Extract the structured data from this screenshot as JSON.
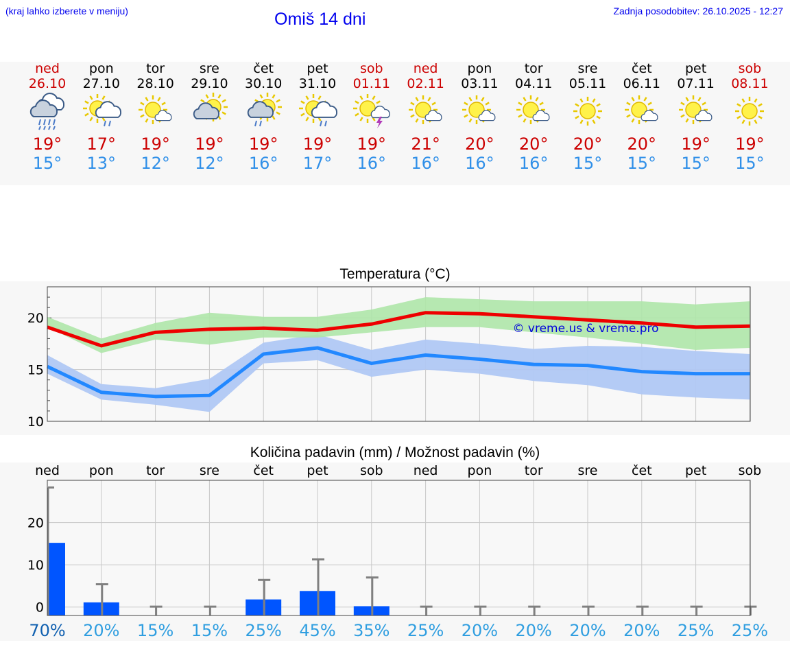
{
  "header": {
    "hint": "(kraj lahko izberete v meniju)",
    "title": "Omiš 14 dni",
    "updated": "Zadnja posodobitev: 26.10.2025 - 12:27"
  },
  "days": [
    {
      "name": "ned",
      "date": "26.10",
      "weekend": true,
      "icon": "cloud-heavy-rain-icon",
      "max": "19°",
      "min": "15°"
    },
    {
      "name": "pon",
      "date": "27.10",
      "weekend": false,
      "icon": "sun-cloud-rain-icon",
      "max": "17°",
      "min": "13°"
    },
    {
      "name": "tor",
      "date": "28.10",
      "weekend": false,
      "icon": "sun-small-cloud-icon",
      "max": "19°",
      "min": "12°"
    },
    {
      "name": "sre",
      "date": "29.10",
      "weekend": false,
      "icon": "cloud-sun-icon",
      "max": "19°",
      "min": "12°"
    },
    {
      "name": "čet",
      "date": "30.10",
      "weekend": false,
      "icon": "cloud-sun-rain-icon",
      "max": "19°",
      "min": "16°"
    },
    {
      "name": "pet",
      "date": "31.10",
      "weekend": false,
      "icon": "sun-cloud-rain-icon",
      "max": "19°",
      "min": "17°"
    },
    {
      "name": "sob",
      "date": "01.11",
      "weekend": true,
      "icon": "sun-cloud-thunder-icon",
      "max": "19°",
      "min": "16°"
    },
    {
      "name": "ned",
      "date": "02.11",
      "weekend": true,
      "icon": "sun-small-cloud-icon",
      "max": "21°",
      "min": "16°"
    },
    {
      "name": "pon",
      "date": "03.11",
      "weekend": false,
      "icon": "sun-small-cloud-icon",
      "max": "20°",
      "min": "16°"
    },
    {
      "name": "tor",
      "date": "04.11",
      "weekend": false,
      "icon": "sun-small-cloud-icon",
      "max": "20°",
      "min": "16°"
    },
    {
      "name": "sre",
      "date": "05.11",
      "weekend": false,
      "icon": "sun-icon",
      "max": "20°",
      "min": "15°"
    },
    {
      "name": "čet",
      "date": "06.11",
      "weekend": false,
      "icon": "sun-small-cloud-icon",
      "max": "20°",
      "min": "15°"
    },
    {
      "name": "pet",
      "date": "07.11",
      "weekend": false,
      "icon": "sun-small-cloud-icon",
      "max": "19°",
      "min": "15°"
    },
    {
      "name": "sob",
      "date": "08.11",
      "weekend": true,
      "icon": "sun-icon",
      "max": "19°",
      "min": "15°"
    }
  ],
  "colors": {
    "max_line": "#ee0000",
    "max_band": "#aee6a8",
    "min_line": "#2288ff",
    "min_band": "#b0c8f4",
    "bar": "#0055ff",
    "whisker": "#808080",
    "pct_first": "#1060b0",
    "pct": "#2f9ee0"
  },
  "chart_data": [
    {
      "type": "line",
      "title": "Temperatura (°C)",
      "watermark": "© vreme.us & vreme.pro",
      "x": [
        "26.10",
        "27.10",
        "28.10",
        "29.10",
        "30.10",
        "31.10",
        "01.11",
        "02.11",
        "03.11",
        "04.11",
        "05.11",
        "06.11",
        "07.11",
        "08.11"
      ],
      "ylim": [
        10,
        23
      ],
      "yticks": [
        10,
        15,
        20
      ],
      "series": [
        {
          "values": [
            19.1,
            17.3,
            18.6,
            18.9,
            19.0,
            18.8,
            19.4,
            20.5,
            20.4,
            20.1,
            19.8,
            19.5,
            19.1,
            19.2
          ],
          "band_low": [
            19.1,
            16.6,
            17.9,
            17.4,
            18.1,
            18.1,
            18.6,
            19.1,
            19.1,
            18.6,
            18.1,
            17.5,
            16.9,
            17.1
          ],
          "band_high": [
            20.1,
            18.0,
            19.5,
            20.5,
            20.1,
            20.1,
            20.8,
            22.0,
            21.8,
            21.6,
            21.6,
            21.6,
            21.3,
            21.6
          ]
        },
        {
          "values": [
            15.3,
            12.8,
            12.4,
            12.5,
            16.5,
            17.1,
            15.6,
            16.4,
            16.0,
            15.5,
            15.4,
            14.8,
            14.6,
            14.6
          ],
          "band_low": [
            14.6,
            12.1,
            11.6,
            10.9,
            15.6,
            15.9,
            14.3,
            15.0,
            14.6,
            13.9,
            13.5,
            12.6,
            12.3,
            12.1
          ],
          "band_high": [
            16.4,
            13.6,
            13.2,
            14.1,
            17.6,
            18.4,
            16.9,
            17.9,
            17.5,
            17.0,
            17.3,
            17.2,
            16.8,
            16.5
          ]
        }
      ]
    },
    {
      "type": "bar",
      "title": "Količina padavin (mm) / Možnost padavin (%)",
      "categories": [
        "ned",
        "pon",
        "tor",
        "sre",
        "čet",
        "pet",
        "sob",
        "ned",
        "pon",
        "tor",
        "sre",
        "čet",
        "pet",
        "sob"
      ],
      "ylim": [
        -2,
        30
      ],
      "yticks": [
        0,
        10,
        20
      ],
      "values": [
        15.2,
        1.1,
        0,
        0,
        1.8,
        3.8,
        0.2,
        0,
        0,
        0,
        0,
        0,
        0,
        0
      ],
      "error_high": [
        28.3,
        5.4,
        0.1,
        0.1,
        6.4,
        11.3,
        7.0,
        0.1,
        0.1,
        0.1,
        0.1,
        0.1,
        0.1,
        0.1
      ],
      "probability": [
        "70%",
        "20%",
        "15%",
        "15%",
        "25%",
        "45%",
        "35%",
        "25%",
        "20%",
        "20%",
        "20%",
        "20%",
        "25%",
        "25%"
      ]
    }
  ]
}
